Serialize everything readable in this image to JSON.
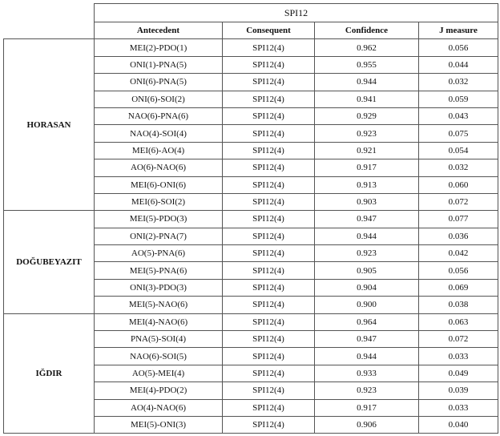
{
  "table": {
    "title": "SPI12",
    "columns": [
      "Antecedent",
      "Consequent",
      "Confidence",
      "J measure"
    ],
    "groups": [
      {
        "name": "HORASAN",
        "rows": [
          [
            "MEI(2)-PDO(1)",
            "SPI12(4)",
            "0.962",
            "0.056"
          ],
          [
            "ONI(1)-PNA(5)",
            "SPI12(4)",
            "0.955",
            "0.044"
          ],
          [
            "ONI(6)-PNA(5)",
            "SPI12(4)",
            "0.944",
            "0.032"
          ],
          [
            "ONI(6)-SOI(2)",
            "SPI12(4)",
            "0.941",
            "0.059"
          ],
          [
            "NAO(6)-PNA(6)",
            "SPI12(4)",
            "0.929",
            "0.043"
          ],
          [
            "NAO(4)-SOI(4)",
            "SPI12(4)",
            "0.923",
            "0.075"
          ],
          [
            "MEI(6)-AO(4)",
            "SPI12(4)",
            "0.921",
            "0.054"
          ],
          [
            "AO(6)-NAO(6)",
            "SPI12(4)",
            "0.917",
            "0.032"
          ],
          [
            "MEI(6)-ONI(6)",
            "SPI12(4)",
            "0.913",
            "0.060"
          ],
          [
            "MEI(6)-SOI(2)",
            "SPI12(4)",
            "0.903",
            "0.072"
          ]
        ]
      },
      {
        "name": "DOĞUBEYAZIT",
        "rows": [
          [
            "MEI(5)-PDO(3)",
            "SPI12(4)",
            "0.947",
            "0.077"
          ],
          [
            "ONI(2)-PNA(7)",
            "SPI12(4)",
            "0.944",
            "0.036"
          ],
          [
            "AO(5)-PNA(6)",
            "SPI12(4)",
            "0.923",
            "0.042"
          ],
          [
            "MEI(5)-PNA(6)",
            "SPI12(4)",
            "0.905",
            "0.056"
          ],
          [
            "ONI(3)-PDO(3)",
            "SPI12(4)",
            "0.904",
            "0.069"
          ],
          [
            "MEI(5)-NAO(6)",
            "SPI12(4)",
            "0.900",
            "0.038"
          ]
        ]
      },
      {
        "name": "IĞDIR",
        "rows": [
          [
            "MEI(4)-NAO(6)",
            "SPI12(4)",
            "0.964",
            "0.063"
          ],
          [
            "PNA(5)-SOI(4)",
            "SPI12(4)",
            "0.947",
            "0.072"
          ],
          [
            "NAO(6)-SOI(5)",
            "SPI12(4)",
            "0.944",
            "0.033"
          ],
          [
            "AO(5)-MEI(4)",
            "SPI12(4)",
            "0.933",
            "0.049"
          ],
          [
            "MEI(4)-PDO(2)",
            "SPI12(4)",
            "0.923",
            "0.039"
          ],
          [
            "AO(4)-NAO(6)",
            "SPI12(4)",
            "0.917",
            "0.033"
          ],
          [
            "MEI(5)-ONI(3)",
            "SPI12(4)",
            "0.906",
            "0.040"
          ]
        ]
      }
    ]
  }
}
